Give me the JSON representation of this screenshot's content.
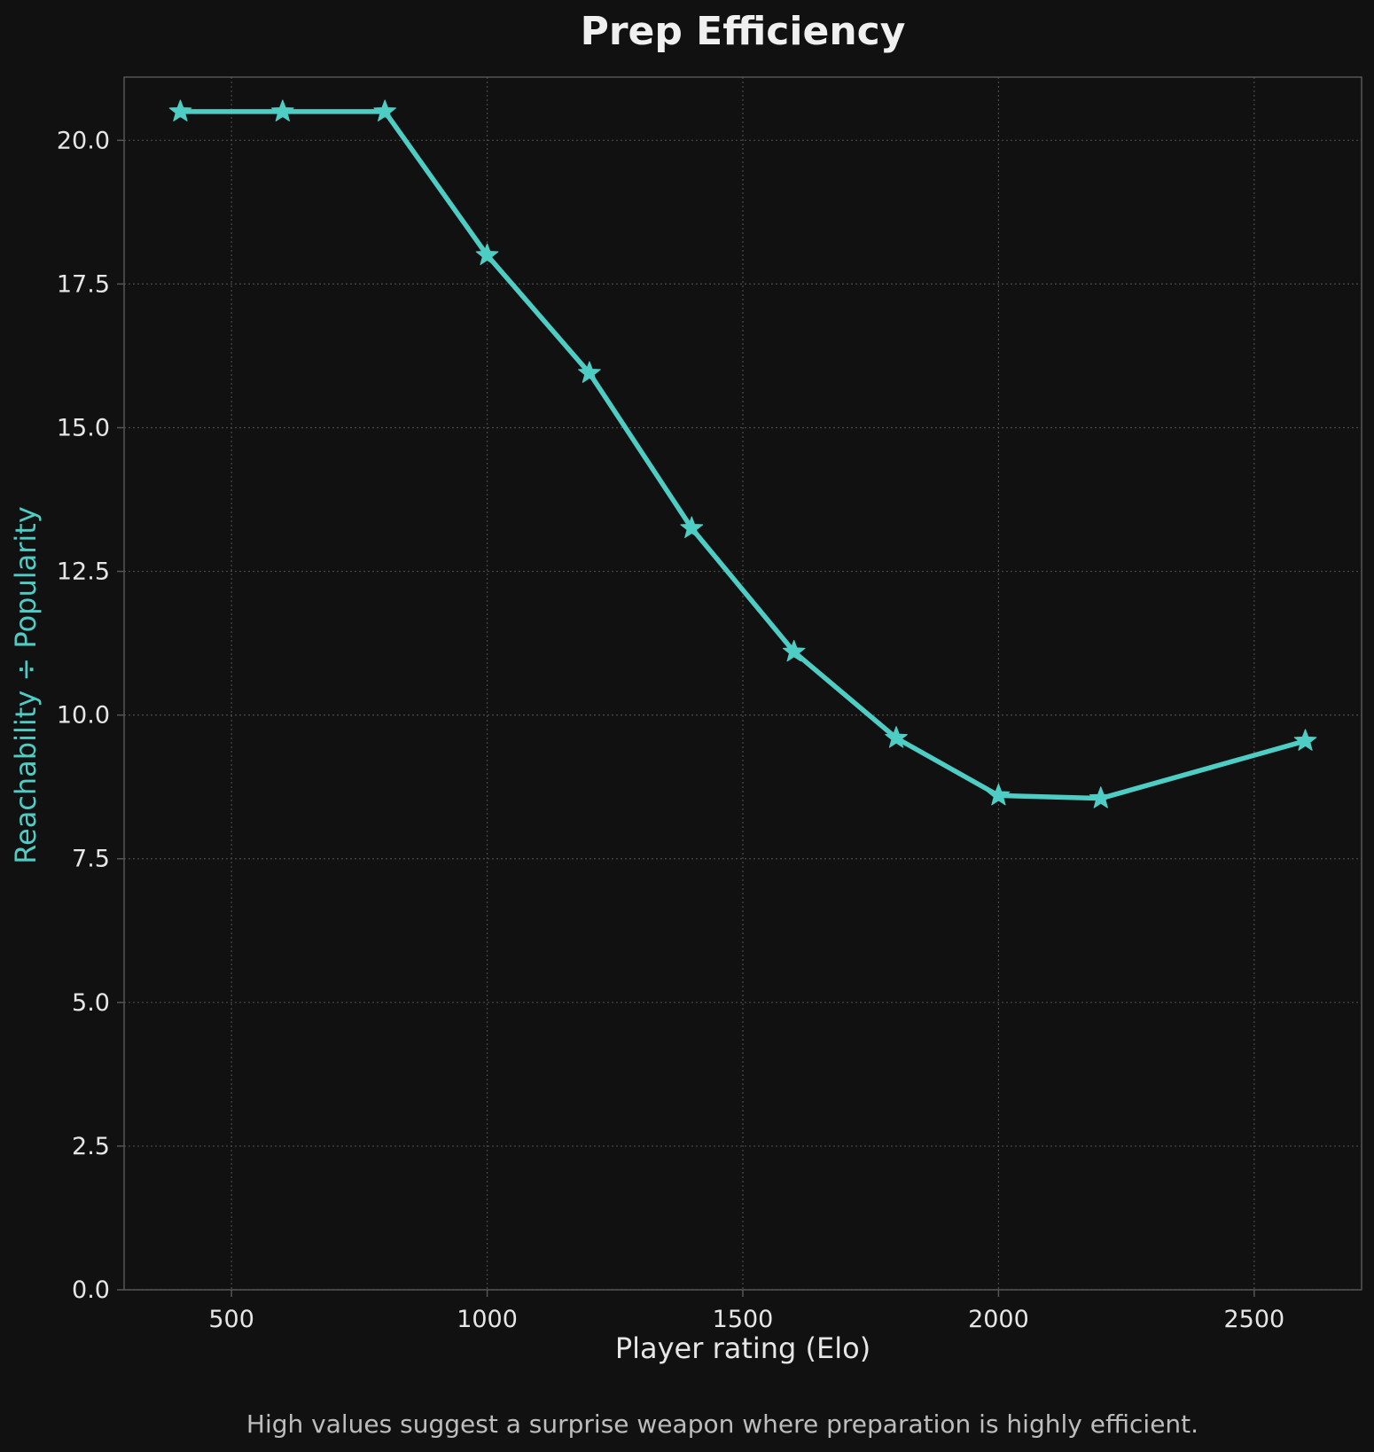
{
  "chart_data": {
    "type": "line",
    "title": "Prep Efficiency",
    "xlabel": "Player rating (Elo)",
    "ylabel": "Reachability ÷ Popularity",
    "caption": "High values suggest a surprise weapon where preparation is highly efficient.",
    "xlim": [
      290,
      2710
    ],
    "ylim": [
      0,
      21.1
    ],
    "xticks": [
      500,
      1000,
      1500,
      2000,
      2500
    ],
    "yticks": [
      0.0,
      2.5,
      5.0,
      7.5,
      10.0,
      12.5,
      15.0,
      17.5,
      20.0
    ],
    "xtick_labels": [
      "500",
      "1000",
      "1500",
      "2000",
      "2500"
    ],
    "ytick_labels": [
      "0.0",
      "2.5",
      "5.0",
      "7.5",
      "10.0",
      "12.5",
      "15.0",
      "17.5",
      "20.0"
    ],
    "grid": true,
    "series": [
      {
        "color": "#4ecdc4",
        "marker": "star",
        "x": [
          400,
          600,
          800,
          1000,
          1200,
          1400,
          1600,
          1800,
          2000,
          2200,
          2600
        ],
        "y": [
          20.5,
          20.5,
          20.5,
          18.0,
          15.95,
          13.25,
          11.1,
          9.6,
          8.6,
          8.55,
          9.55
        ]
      }
    ],
    "colors": {
      "background": "#111111",
      "axes_edge": "#555555",
      "grid": "#4a4a4a",
      "text": "#e6e6e6",
      "caption": "#bdbdbd",
      "accent": "#4ecdc4"
    }
  }
}
